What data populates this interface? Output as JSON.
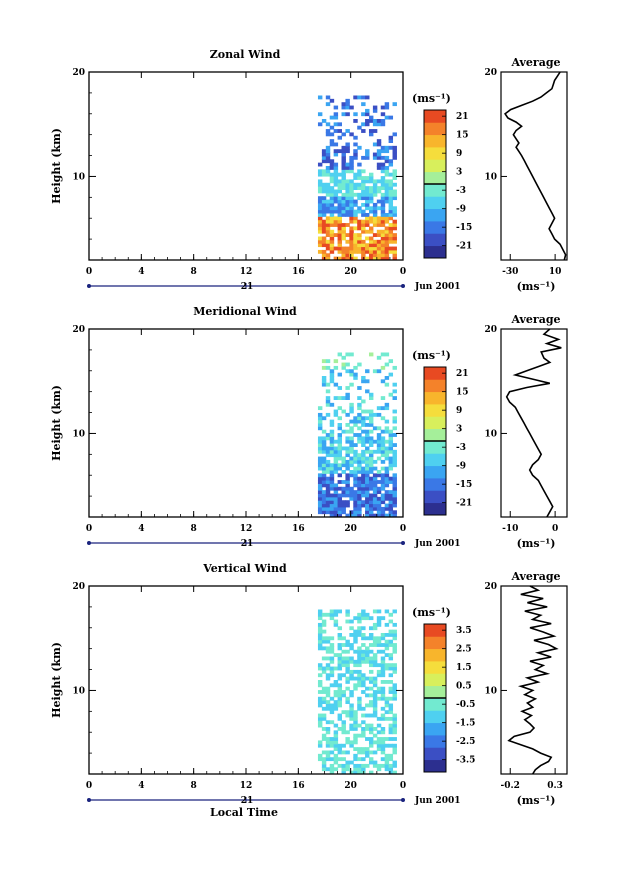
{
  "chart_data": [
    {
      "type": "heatmap",
      "title": "Zonal Wind",
      "ylabel": "Height (km)",
      "ylim": [
        2,
        20
      ],
      "yticks": [
        "20",
        "10"
      ],
      "xticks": [
        "0",
        "4",
        "8",
        "12",
        "16",
        "20",
        "0"
      ],
      "xlim": [
        0,
        24
      ],
      "day_label": "21",
      "date_label": "Jun 2001",
      "data_x_range": [
        17.5,
        23.5
      ],
      "colorbar": {
        "unit": "(ms⁻¹)",
        "range": [
          -24,
          24
        ],
        "tick_labels": [
          "21",
          "15",
          "9",
          "3",
          "-3",
          "-9",
          "-15",
          "-21"
        ]
      },
      "profile": {
        "title": "Average",
        "xlabel": "(ms⁻¹)",
        "xlim": [
          -35,
          13
        ],
        "xticks": [
          "-30",
          "10"
        ],
        "yticks": [
          "20",
          "10"
        ],
        "points": [
          [
            8,
            20
          ],
          [
            6,
            19.6
          ],
          [
            4,
            19.2
          ],
          [
            3,
            18.8
          ],
          [
            2,
            18.4
          ],
          [
            -2,
            18
          ],
          [
            -6,
            17.6
          ],
          [
            -12,
            17.2
          ],
          [
            -20,
            16.8
          ],
          [
            -28,
            16.4
          ],
          [
            -32,
            16
          ],
          [
            -30,
            15.6
          ],
          [
            -24,
            15.2
          ],
          [
            -20,
            14.8
          ],
          [
            -24,
            14.4
          ],
          [
            -26,
            14
          ],
          [
            -24,
            13.6
          ],
          [
            -22,
            13.2
          ],
          [
            -24,
            12.8
          ],
          [
            -22,
            12.4
          ],
          [
            -20,
            12
          ],
          [
            -18,
            11.5
          ],
          [
            -16,
            11
          ],
          [
            -14,
            10.5
          ],
          [
            -12,
            10
          ],
          [
            -10,
            9.5
          ],
          [
            -8,
            9
          ],
          [
            -6,
            8.5
          ],
          [
            -4,
            8
          ],
          [
            -2,
            7.5
          ],
          [
            0,
            7
          ],
          [
            2,
            6.5
          ],
          [
            4,
            6
          ],
          [
            2,
            5.5
          ],
          [
            0,
            5
          ],
          [
            2,
            4.5
          ],
          [
            4,
            4
          ],
          [
            8,
            3.5
          ],
          [
            10,
            3
          ],
          [
            12,
            2.5
          ],
          [
            11,
            2
          ]
        ]
      },
      "grid": false
    },
    {
      "type": "heatmap",
      "title": "Meridional Wind",
      "ylabel": "Height (km)",
      "ylim": [
        2,
        20
      ],
      "yticks": [
        "20",
        "10"
      ],
      "xticks": [
        "0",
        "4",
        "8",
        "12",
        "16",
        "20",
        "0"
      ],
      "xlim": [
        0,
        24
      ],
      "day_label": "21",
      "date_label": "Jun 2001",
      "data_x_range": [
        17.5,
        23.5
      ],
      "colorbar": {
        "unit": "(ms⁻¹)",
        "range": [
          -24,
          24
        ],
        "tick_labels": [
          "21",
          "15",
          "9",
          "3",
          "-3",
          "-9",
          "-15",
          "-21"
        ]
      },
      "profile": {
        "title": "Average",
        "xlabel": "(ms⁻¹)",
        "xlim": [
          -17,
          6
        ],
        "xticks": [
          "-10",
          "0"
        ],
        "yticks": [
          "20",
          "10"
        ],
        "points": [
          [
            0,
            20
          ],
          [
            -2,
            19.5
          ],
          [
            3,
            19
          ],
          [
            -1,
            18.6
          ],
          [
            4,
            18.2
          ],
          [
            -3,
            17.8
          ],
          [
            -2,
            17.2
          ],
          [
            0,
            16.8
          ],
          [
            -4,
            16.4
          ],
          [
            -8,
            16
          ],
          [
            -12,
            15.6
          ],
          [
            -6,
            15.2
          ],
          [
            0,
            14.8
          ],
          [
            -8,
            14.4
          ],
          [
            -14,
            14
          ],
          [
            -15,
            13.5
          ],
          [
            -14,
            13
          ],
          [
            -12,
            12.5
          ],
          [
            -11,
            12
          ],
          [
            -10,
            11.5
          ],
          [
            -9,
            11
          ],
          [
            -8,
            10.5
          ],
          [
            -7,
            10
          ],
          [
            -6,
            9.5
          ],
          [
            -5,
            9
          ],
          [
            -4,
            8.5
          ],
          [
            -3,
            8
          ],
          [
            -4,
            7.5
          ],
          [
            -6,
            7
          ],
          [
            -7,
            6.5
          ],
          [
            -6,
            6
          ],
          [
            -4,
            5.5
          ],
          [
            -3,
            5
          ],
          [
            -2,
            4.5
          ],
          [
            -1,
            4
          ],
          [
            0,
            3.5
          ],
          [
            1,
            3
          ],
          [
            0,
            2.5
          ],
          [
            -1,
            2
          ]
        ]
      },
      "grid": false
    },
    {
      "type": "heatmap",
      "title": "Vertical Wind",
      "ylabel": "Height (km)",
      "xlabel": "Local Time",
      "ylim": [
        2,
        20
      ],
      "yticks": [
        "20",
        "10"
      ],
      "xticks": [
        "0",
        "4",
        "8",
        "12",
        "16",
        "20",
        "0"
      ],
      "xlim": [
        0,
        24
      ],
      "day_label": "21",
      "date_label": "Jun 2001",
      "data_x_range": [
        17.5,
        23.5
      ],
      "colorbar": {
        "unit": "(ms⁻¹)",
        "range": [
          -4,
          4
        ],
        "tick_labels": [
          "3.5",
          "2.5",
          "1.5",
          "0.5",
          "-0.5",
          "-1.5",
          "-2.5",
          "-3.5"
        ]
      },
      "profile": {
        "title": "Average",
        "xlabel": "(ms⁻¹)",
        "xlim": [
          -0.2,
          0.3
        ],
        "xticks": [
          "-0.2",
          "0.3"
        ],
        "yticks": [
          "20",
          "10"
        ],
        "points": [
          [
            0.02,
            20
          ],
          [
            0.08,
            19.6
          ],
          [
            -0.05,
            19.2
          ],
          [
            0.12,
            18.8
          ],
          [
            0.0,
            18.4
          ],
          [
            0.15,
            18
          ],
          [
            -0.02,
            17.6
          ],
          [
            0.1,
            17.2
          ],
          [
            0.04,
            16.8
          ],
          [
            0.18,
            16.4
          ],
          [
            0.02,
            16
          ],
          [
            0.12,
            15.6
          ],
          [
            0.2,
            15.2
          ],
          [
            0.05,
            14.8
          ],
          [
            0.16,
            14.4
          ],
          [
            0.22,
            14
          ],
          [
            0.08,
            13.6
          ],
          [
            0.18,
            13.2
          ],
          [
            0.02,
            12.8
          ],
          [
            0.12,
            12.4
          ],
          [
            0.06,
            12
          ],
          [
            0.15,
            11.6
          ],
          [
            0.0,
            11.2
          ],
          [
            0.08,
            10.8
          ],
          [
            -0.05,
            10.4
          ],
          [
            0.04,
            10
          ],
          [
            -0.02,
            9.6
          ],
          [
            0.06,
            9.2
          ],
          [
            0.0,
            8.8
          ],
          [
            0.04,
            8.4
          ],
          [
            -0.04,
            8
          ],
          [
            0.03,
            7.6
          ],
          [
            -0.02,
            7.2
          ],
          [
            0.02,
            6.8
          ],
          [
            0.05,
            6.4
          ],
          [
            0.02,
            6
          ],
          [
            -0.1,
            5.6
          ],
          [
            -0.14,
            5.2
          ],
          [
            -0.05,
            4.8
          ],
          [
            0.04,
            4.4
          ],
          [
            0.1,
            4
          ],
          [
            0.18,
            3.6
          ],
          [
            0.16,
            3.2
          ],
          [
            0.1,
            2.8
          ],
          [
            0.06,
            2.4
          ],
          [
            0.04,
            2
          ]
        ]
      },
      "grid": false
    }
  ]
}
